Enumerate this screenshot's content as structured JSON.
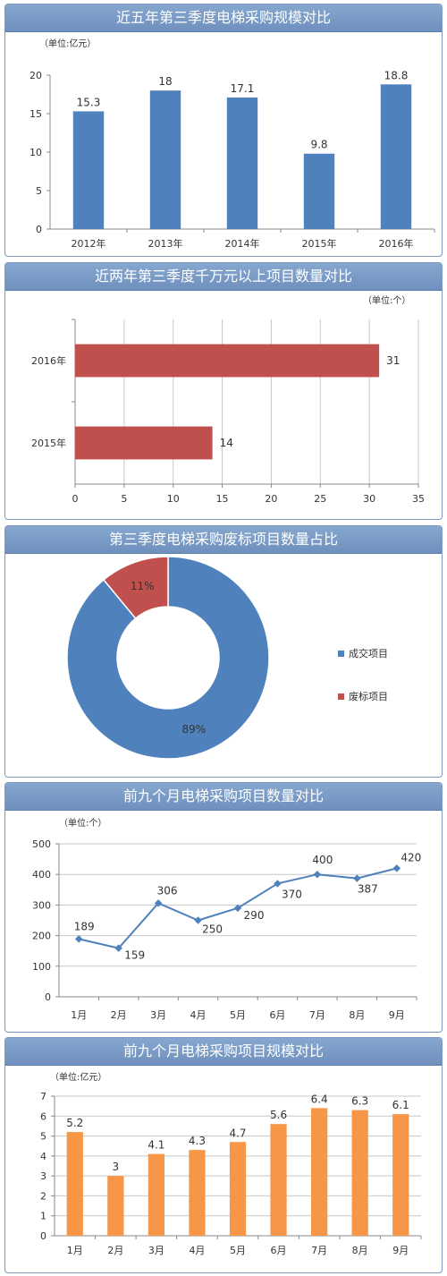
{
  "chart_data": [
    {
      "type": "bar",
      "title": "近五年第三季度电梯采购规模对比",
      "unit": "（单位:亿元）",
      "categories": [
        "2012年",
        "2013年",
        "2014年",
        "2015年",
        "2016年"
      ],
      "values": [
        15.3,
        18,
        17.1,
        9.8,
        18.8
      ],
      "ylim": [
        0,
        20
      ],
      "yticks": [
        "0",
        "5",
        "10",
        "15",
        "20"
      ],
      "color": "#4f81bd",
      "grid": false
    },
    {
      "type": "bar",
      "orientation": "horizontal",
      "title": "近两年第三季度千万元以上项目数量对比",
      "unit": "（单位:个）",
      "categories": [
        "2016年",
        "2015年"
      ],
      "values": [
        31,
        14
      ],
      "xlim": [
        0,
        35
      ],
      "xticks": [
        "0",
        "5",
        "10",
        "15",
        "20",
        "25",
        "30",
        "35"
      ],
      "color": "#c0504d",
      "grid": true
    },
    {
      "type": "pie",
      "title": "第三季度电梯采购废标项目数量占比",
      "slices": [
        {
          "name": "成交项目",
          "value": 89,
          "label": "89%",
          "color": "#4f81bd"
        },
        {
          "name": "废标项目",
          "value": 11,
          "label": "11%",
          "color": "#c0504d"
        }
      ],
      "legend_position": "right"
    },
    {
      "type": "line",
      "title": "前九个月电梯采购项目数量对比",
      "unit": "（单位:个）",
      "categories": [
        "1月",
        "2月",
        "3月",
        "4月",
        "5月",
        "6月",
        "7月",
        "8月",
        "9月"
      ],
      "values": [
        189,
        159,
        306,
        250,
        290,
        370,
        400,
        387,
        420
      ],
      "ylim": [
        0,
        500
      ],
      "yticks": [
        "0",
        "100",
        "200",
        "300",
        "400",
        "500"
      ],
      "color": "#4f81bd",
      "grid": true
    },
    {
      "type": "bar",
      "title": "前九个月电梯采购项目规模对比",
      "unit": "（单位:亿元）",
      "categories": [
        "1月",
        "2月",
        "3月",
        "4月",
        "5月",
        "6月",
        "7月",
        "8月",
        "9月"
      ],
      "values": [
        5.2,
        3,
        4.1,
        4.3,
        4.7,
        5.6,
        6.4,
        6.3,
        6.1
      ],
      "ylim": [
        0,
        7
      ],
      "yticks": [
        "0",
        "1",
        "2",
        "3",
        "4",
        "5",
        "6",
        "7"
      ],
      "color": "#f79646",
      "grid": true
    }
  ]
}
